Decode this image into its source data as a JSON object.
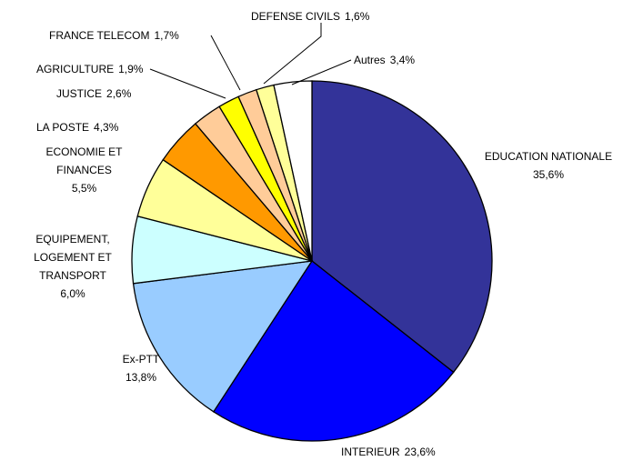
{
  "chart_data": {
    "type": "pie",
    "categories": [
      "EDUCATION NATIONALE",
      "INTERIEUR",
      "Ex-PTT",
      "EQUIPEMENT, LOGEMENT ET TRANSPORT",
      "ECONOMIE ET FINANCES",
      "LA POSTE",
      "JUSTICE",
      "AGRICULTURE",
      "FRANCE TELECOM",
      "DEFENSE CIVILS",
      "Autres"
    ],
    "values": [
      35.6,
      23.6,
      13.8,
      6.0,
      5.5,
      4.3,
      2.6,
      1.9,
      1.7,
      1.6,
      3.4
    ],
    "value_labels": [
      "35,6%",
      "23,6%",
      "13,8%",
      "6,0%",
      "5,5%",
      "4,3%",
      "2,6%",
      "1,9%",
      "1,7%",
      "1,6%",
      "3,4%"
    ],
    "colors": [
      "#333399",
      "#0000ff",
      "#99ccff",
      "#ccffff",
      "#ffff99",
      "#ff9900",
      "#ffcc99",
      "#ffff00",
      "#ffcc99",
      "#ffff99",
      "#ffffff"
    ]
  }
}
